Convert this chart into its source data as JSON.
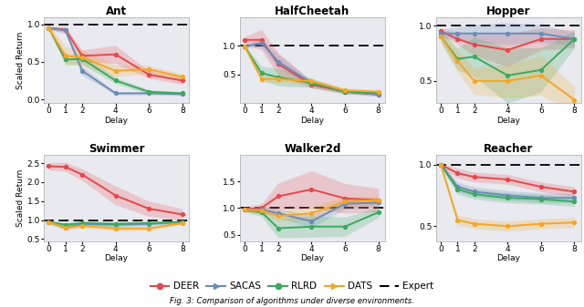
{
  "subplots": {
    "Ant": {
      "x": [
        0,
        1,
        2,
        4,
        6,
        8
      ],
      "DEER": [
        0.95,
        0.93,
        0.58,
        0.6,
        0.33,
        0.25
      ],
      "SACAS": [
        0.95,
        0.92,
        0.38,
        0.08,
        0.08,
        0.07
      ],
      "RLRD": [
        0.95,
        0.53,
        0.54,
        0.25,
        0.1,
        0.08
      ],
      "DATS": [
        0.95,
        0.58,
        0.56,
        0.38,
        0.4,
        0.3
      ],
      "DEER_std": [
        0.02,
        0.04,
        0.08,
        0.12,
        0.05,
        0.05
      ],
      "SACAS_std": [
        0.02,
        0.04,
        0.06,
        0.02,
        0.02,
        0.02
      ],
      "RLRD_std": [
        0.02,
        0.06,
        0.08,
        0.04,
        0.03,
        0.02
      ],
      "DATS_std": [
        0.04,
        0.12,
        0.1,
        0.08,
        0.05,
        0.04
      ],
      "ylim": [
        -0.05,
        1.1
      ],
      "yticks": [
        0.0,
        0.5,
        1.0
      ]
    },
    "HalfCheetah": {
      "x": [
        0,
        1,
        2,
        4,
        6,
        8
      ],
      "DEER": [
        1.1,
        1.1,
        0.68,
        0.32,
        0.2,
        0.15
      ],
      "SACAS": [
        0.98,
        1.05,
        0.72,
        0.35,
        0.2,
        0.15
      ],
      "RLRD": [
        0.98,
        0.52,
        0.45,
        0.35,
        0.2,
        0.18
      ],
      "DATS": [
        0.98,
        0.42,
        0.42,
        0.38,
        0.22,
        0.2
      ],
      "DEER_std": [
        0.06,
        0.18,
        0.2,
        0.06,
        0.04,
        0.03
      ],
      "SACAS_std": [
        0.03,
        0.08,
        0.12,
        0.05,
        0.03,
        0.03
      ],
      "RLRD_std": [
        0.03,
        0.12,
        0.15,
        0.08,
        0.04,
        0.03
      ],
      "DATS_std": [
        0.03,
        0.05,
        0.06,
        0.05,
        0.04,
        0.03
      ],
      "ylim": [
        0.0,
        1.5
      ],
      "yticks": [
        0.5,
        1.0
      ]
    },
    "Hopper": {
      "x": [
        0,
        1,
        2,
        4,
        6,
        8
      ],
      "DEER": [
        0.95,
        0.88,
        0.83,
        0.78,
        0.88,
        0.88
      ],
      "SACAS": [
        0.93,
        0.93,
        0.93,
        0.93,
        0.93,
        0.88
      ],
      "RLRD": [
        0.9,
        0.7,
        0.72,
        0.55,
        0.6,
        0.88
      ],
      "DATS": [
        0.9,
        0.68,
        0.5,
        0.5,
        0.55,
        0.33
      ],
      "DEER_std": [
        0.03,
        0.05,
        0.1,
        0.15,
        0.1,
        0.08
      ],
      "SACAS_std": [
        0.04,
        0.06,
        0.08,
        0.1,
        0.08,
        0.06
      ],
      "RLRD_std": [
        0.05,
        0.1,
        0.18,
        0.25,
        0.2,
        0.08
      ],
      "DATS_std": [
        0.05,
        0.1,
        0.12,
        0.15,
        0.18,
        0.12
      ],
      "ylim": [
        0.3,
        1.08
      ],
      "yticks": [
        0.5,
        1.0
      ]
    },
    "Swimmer": {
      "x": [
        0,
        1,
        2,
        4,
        6,
        8
      ],
      "DEER": [
        2.42,
        2.4,
        2.2,
        1.65,
        1.3,
        1.15
      ],
      "SACAS": [
        0.95,
        0.8,
        0.9,
        0.88,
        0.9,
        0.95
      ],
      "RLRD": [
        0.95,
        0.88,
        0.92,
        0.9,
        0.92,
        0.95
      ],
      "DATS": [
        0.95,
        0.8,
        0.85,
        0.78,
        0.78,
        0.92
      ],
      "DEER_std": [
        0.1,
        0.12,
        0.15,
        0.25,
        0.2,
        0.15
      ],
      "SACAS_std": [
        0.05,
        0.05,
        0.06,
        0.06,
        0.05,
        0.04
      ],
      "RLRD_std": [
        0.05,
        0.05,
        0.06,
        0.06,
        0.05,
        0.04
      ],
      "DATS_std": [
        0.05,
        0.06,
        0.06,
        0.06,
        0.05,
        0.04
      ],
      "ylim": [
        0.45,
        2.72
      ],
      "yticks": [
        0.5,
        1.0,
        1.5,
        2.0,
        2.5
      ]
    },
    "Walker2d": {
      "x": [
        0,
        1,
        2,
        4,
        6,
        8
      ],
      "DEER": [
        0.98,
        1.0,
        1.22,
        1.35,
        1.18,
        1.15
      ],
      "SACAS": [
        0.97,
        0.97,
        0.9,
        0.75,
        1.08,
        1.1
      ],
      "RLRD": [
        0.97,
        0.92,
        0.62,
        0.65,
        0.65,
        0.92
      ],
      "DATS": [
        0.97,
        0.95,
        0.85,
        0.9,
        1.12,
        1.15
      ],
      "DEER_std": [
        0.05,
        0.08,
        0.25,
        0.35,
        0.28,
        0.22
      ],
      "SACAS_std": [
        0.04,
        0.06,
        0.08,
        0.12,
        0.1,
        0.08
      ],
      "RLRD_std": [
        0.04,
        0.08,
        0.18,
        0.2,
        0.18,
        0.1
      ],
      "DATS_std": [
        0.04,
        0.08,
        0.1,
        0.12,
        0.1,
        0.08
      ],
      "ylim": [
        0.38,
        2.0
      ],
      "yticks": [
        0.5,
        1.0,
        1.5
      ]
    },
    "Reacher": {
      "x": [
        0,
        1,
        2,
        4,
        6,
        8
      ],
      "DEER": [
        1.0,
        0.93,
        0.9,
        0.88,
        0.82,
        0.78
      ],
      "SACAS": [
        1.0,
        0.82,
        0.78,
        0.75,
        0.73,
        0.73
      ],
      "RLRD": [
        1.0,
        0.8,
        0.76,
        0.73,
        0.72,
        0.7
      ],
      "DATS": [
        1.0,
        0.55,
        0.52,
        0.5,
        0.52,
        0.53
      ],
      "DEER_std": [
        0.02,
        0.04,
        0.04,
        0.04,
        0.04,
        0.04
      ],
      "SACAS_std": [
        0.02,
        0.04,
        0.04,
        0.04,
        0.04,
        0.04
      ],
      "RLRD_std": [
        0.02,
        0.04,
        0.04,
        0.04,
        0.04,
        0.04
      ],
      "DATS_std": [
        0.02,
        0.04,
        0.04,
        0.04,
        0.04,
        0.04
      ],
      "ylim": [
        0.38,
        1.08
      ],
      "yticks": [
        0.5,
        1.0
      ]
    }
  },
  "colors": {
    "DEER": "#e8474b",
    "SACAS": "#6b8cba",
    "RLRD": "#3aaa5c",
    "DATS": "#f5a623"
  },
  "subplot_order": [
    "Ant",
    "HalfCheetah",
    "Hopper",
    "Swimmer",
    "Walker2d",
    "Reacher"
  ],
  "xticks": [
    0,
    1,
    2,
    4,
    6,
    8
  ],
  "xlabel": "Delay",
  "ylabel": "Scaled Return",
  "expert_line": 1.0,
  "background_color": "#e8eaf0"
}
